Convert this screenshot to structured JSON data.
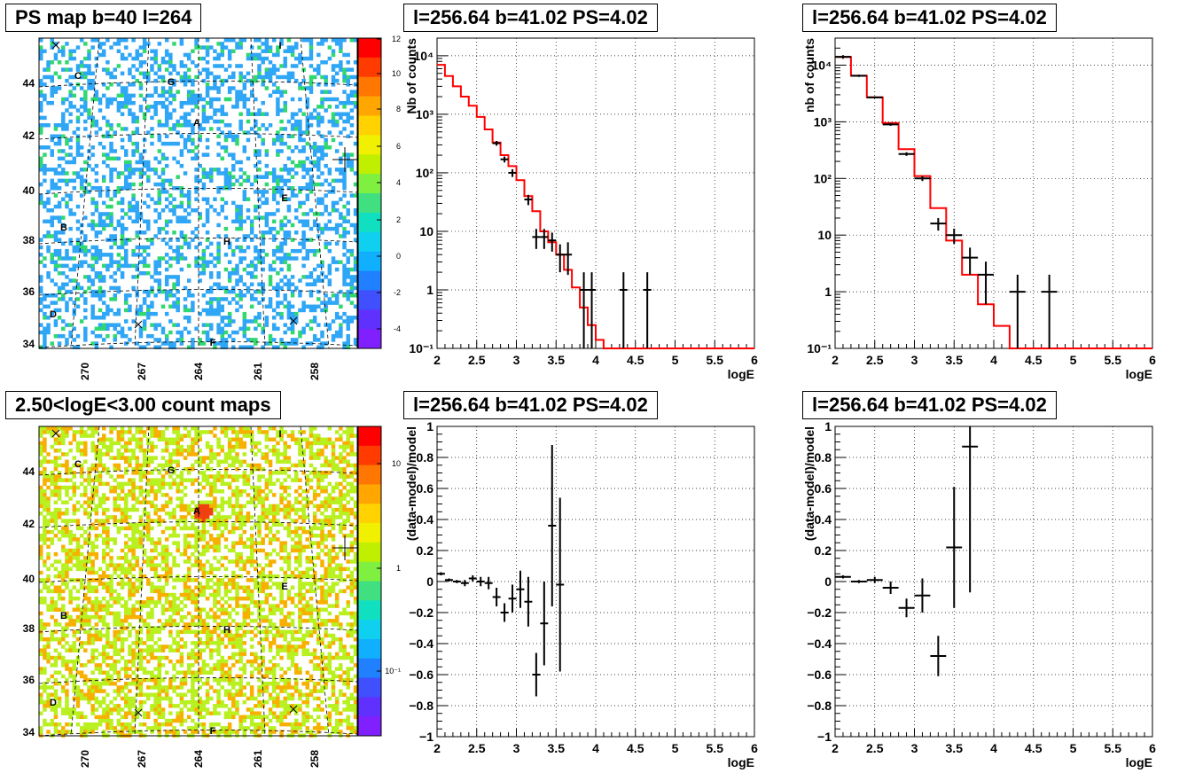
{
  "maps": [
    {
      "title": "PS map b=40 l=264",
      "type": "heatmap",
      "colorbar_ticks": [
        "12",
        "10",
        "8",
        "6",
        "4",
        "2",
        "0",
        "-2",
        "-4"
      ],
      "xticks": [
        "270",
        "267",
        "264",
        "261",
        "258"
      ],
      "yticks": [
        "44",
        "42",
        "40",
        "38",
        "36",
        "34"
      ],
      "sources": [
        "C",
        "G",
        "A",
        "E",
        "B",
        "H",
        "D",
        "F",
        "I"
      ],
      "colors": {
        "base": "#0fe6ef",
        "low": "#2fa6f6",
        "mid": "#30d870",
        "high": "#a6f000"
      }
    },
    {
      "title": "2.50<logE<3.00 count maps",
      "type": "heatmap",
      "colorbar_ticks": [
        "10",
        "1",
        "10⁻¹"
      ],
      "xticks": [
        "270",
        "267",
        "264",
        "261",
        "258"
      ],
      "yticks": [
        "44",
        "42",
        "40",
        "38",
        "36",
        "34"
      ],
      "sources": [
        "C",
        "G",
        "A",
        "E",
        "B",
        "H",
        "D",
        "F",
        "I"
      ],
      "colors": {
        "base": "#f0ec20",
        "low": "#b8f020",
        "mid": "#f8b000",
        "high": "#f04010"
      }
    }
  ],
  "chart_data": [
    {
      "type": "line",
      "title": "l=256.64 b=41.02 PS=4.02",
      "xlabel": "logE",
      "ylabel": "Nb of counts",
      "xlim": [
        2,
        6
      ],
      "ylim": [
        0.1,
        20000
      ],
      "ylog": true,
      "grid": true,
      "xticks": [
        "2",
        "2.5",
        "3",
        "3.5",
        "4",
        "4.5",
        "5",
        "5.5",
        "6"
      ],
      "yticks": [
        {
          "v": 0.1,
          "t": "10⁻¹"
        },
        {
          "v": 1,
          "t": "1"
        },
        {
          "v": 10,
          "t": "10"
        },
        {
          "v": 100,
          "t": "10²"
        },
        {
          "v": 1000,
          "t": "10³"
        },
        {
          "v": 10000,
          "t": "10⁴"
        }
      ],
      "model_color": "#ff0000",
      "model": {
        "edges": [
          2.0,
          2.1,
          2.2,
          2.3,
          2.4,
          2.5,
          2.6,
          2.7,
          2.8,
          2.9,
          3.0,
          3.1,
          3.2,
          3.3,
          3.4,
          3.5,
          3.6,
          3.7,
          3.8,
          3.9,
          4.0,
          4.1,
          6.0
        ],
        "values": [
          7000,
          4500,
          3000,
          2000,
          1400,
          900,
          550,
          330,
          200,
          130,
          75,
          40,
          22,
          10,
          6.5,
          4,
          2.2,
          1.1,
          0.5,
          0.25,
          0.14,
          0.1
        ]
      },
      "points": [
        {
          "x": 2.75,
          "xe": 0.05,
          "y": 320,
          "lo": 290,
          "hi": 350
        },
        {
          "x": 2.85,
          "xe": 0.05,
          "y": 170,
          "lo": 150,
          "hi": 190
        },
        {
          "x": 2.95,
          "xe": 0.05,
          "y": 100,
          "lo": 85,
          "hi": 115
        },
        {
          "x": 3.15,
          "xe": 0.05,
          "y": 35,
          "lo": 28,
          "hi": 42
        },
        {
          "x": 3.25,
          "xe": 0.05,
          "y": 8,
          "lo": 5,
          "hi": 11
        },
        {
          "x": 3.35,
          "xe": 0.05,
          "y": 8,
          "lo": 5,
          "hi": 11
        },
        {
          "x": 3.45,
          "xe": 0.05,
          "y": 7,
          "lo": 4.5,
          "hi": 9.5
        },
        {
          "x": 3.55,
          "xe": 0.05,
          "y": 4,
          "lo": 2,
          "hi": 6
        },
        {
          "x": 3.65,
          "xe": 0.05,
          "y": 4,
          "lo": 1.8,
          "hi": 6.5
        },
        {
          "x": 3.85,
          "xe": 0.05,
          "y": 1,
          "lo": 0.1,
          "hi": 2
        },
        {
          "x": 3.95,
          "xe": 0.05,
          "y": 1,
          "lo": 0.1,
          "hi": 2
        },
        {
          "x": 4.35,
          "xe": 0.05,
          "y": 1,
          "lo": 0.1,
          "hi": 2
        },
        {
          "x": 4.65,
          "xe": 0.05,
          "y": 1,
          "lo": 0.1,
          "hi": 2
        }
      ]
    },
    {
      "type": "line",
      "title": "l=256.64 b=41.02 PS=4.02",
      "xlabel": "logE",
      "ylabel": "nb of counts",
      "xlim": [
        2,
        6
      ],
      "ylim": [
        0.1,
        30000
      ],
      "ylog": true,
      "grid": true,
      "xticks": [
        "2",
        "2.5",
        "3",
        "3.5",
        "4",
        "4.5",
        "5",
        "5.5",
        "6"
      ],
      "yticks": [
        {
          "v": 0.1,
          "t": "10⁻¹"
        },
        {
          "v": 1,
          "t": "1"
        },
        {
          "v": 10,
          "t": "10"
        },
        {
          "v": 100,
          "t": "10²"
        },
        {
          "v": 1000,
          "t": "10³"
        },
        {
          "v": 10000,
          "t": "10⁴"
        }
      ],
      "model_color": "#ff0000",
      "model": {
        "edges": [
          2.0,
          2.2,
          2.4,
          2.6,
          2.8,
          3.0,
          3.2,
          3.4,
          3.6,
          3.8,
          4.0,
          4.2,
          6.0
        ],
        "values": [
          14000,
          6500,
          2700,
          950,
          330,
          110,
          30,
          8,
          2,
          0.6,
          0.25,
          0.1
        ]
      },
      "points": [
        {
          "x": 2.1,
          "xe": 0.1,
          "y": 14000,
          "lo": 13000,
          "hi": 15000
        },
        {
          "x": 2.3,
          "xe": 0.1,
          "y": 6500,
          "lo": 6200,
          "hi": 6800
        },
        {
          "x": 2.5,
          "xe": 0.1,
          "y": 2700,
          "lo": 2600,
          "hi": 2800
        },
        {
          "x": 2.7,
          "xe": 0.1,
          "y": 900,
          "lo": 850,
          "hi": 950
        },
        {
          "x": 2.9,
          "xe": 0.1,
          "y": 270,
          "lo": 250,
          "hi": 290
        },
        {
          "x": 3.1,
          "xe": 0.1,
          "y": 100,
          "lo": 90,
          "hi": 110
        },
        {
          "x": 3.3,
          "xe": 0.1,
          "y": 16,
          "lo": 12,
          "hi": 20
        },
        {
          "x": 3.5,
          "xe": 0.1,
          "y": 10,
          "lo": 7,
          "hi": 13
        },
        {
          "x": 3.7,
          "xe": 0.1,
          "y": 4,
          "lo": 2,
          "hi": 6
        },
        {
          "x": 3.9,
          "xe": 0.1,
          "y": 2,
          "lo": 0.6,
          "hi": 3.4
        },
        {
          "x": 4.3,
          "xe": 0.1,
          "y": 1,
          "lo": 0.1,
          "hi": 2
        },
        {
          "x": 4.7,
          "xe": 0.1,
          "y": 1,
          "lo": 0.1,
          "hi": 2
        }
      ]
    },
    {
      "type": "scatter",
      "title": "l=256.64 b=41.02 PS=4.02",
      "xlabel": "logE",
      "ylabel": "(data-model)/model",
      "xlim": [
        2,
        6
      ],
      "ylim": [
        -1,
        1
      ],
      "ylog": false,
      "grid": true,
      "xticks": [
        "2",
        "2.5",
        "3",
        "3.5",
        "4",
        "4.5",
        "5",
        "5.5",
        "6"
      ],
      "yticks": [
        {
          "v": -1,
          "t": "−1"
        },
        {
          "v": -0.8,
          "t": "−0.8"
        },
        {
          "v": -0.6,
          "t": "−0.6"
        },
        {
          "v": -0.4,
          "t": "−0.4"
        },
        {
          "v": -0.2,
          "t": "−0.2"
        },
        {
          "v": 0,
          "t": "0"
        },
        {
          "v": 0.2,
          "t": "0.2"
        },
        {
          "v": 0.4,
          "t": "0.4"
        },
        {
          "v": 0.6,
          "t": "0.6"
        },
        {
          "v": 0.8,
          "t": "0.8"
        },
        {
          "v": 1,
          "t": "1"
        }
      ],
      "points": [
        {
          "x": 2.05,
          "xe": 0.05,
          "y": 0.05,
          "lo": 0.04,
          "hi": 0.06
        },
        {
          "x": 2.15,
          "xe": 0.05,
          "y": 0.01,
          "lo": 0.0,
          "hi": 0.02
        },
        {
          "x": 2.25,
          "xe": 0.05,
          "y": 0.0,
          "lo": -0.01,
          "hi": 0.01
        },
        {
          "x": 2.35,
          "xe": 0.05,
          "y": -0.01,
          "lo": -0.03,
          "hi": 0.01
        },
        {
          "x": 2.45,
          "xe": 0.05,
          "y": 0.02,
          "lo": 0.0,
          "hi": 0.04
        },
        {
          "x": 2.55,
          "xe": 0.05,
          "y": 0.0,
          "lo": -0.03,
          "hi": 0.03
        },
        {
          "x": 2.65,
          "xe": 0.05,
          "y": -0.01,
          "lo": -0.05,
          "hi": 0.03
        },
        {
          "x": 2.75,
          "xe": 0.05,
          "y": -0.1,
          "lo": -0.16,
          "hi": -0.04
        },
        {
          "x": 2.85,
          "xe": 0.05,
          "y": -0.2,
          "lo": -0.26,
          "hi": -0.14
        },
        {
          "x": 2.95,
          "xe": 0.05,
          "y": -0.11,
          "lo": -0.2,
          "hi": -0.02
        },
        {
          "x": 3.05,
          "xe": 0.05,
          "y": -0.05,
          "lo": -0.17,
          "hi": 0.07
        },
        {
          "x": 3.15,
          "xe": 0.05,
          "y": -0.13,
          "lo": -0.29,
          "hi": 0.03
        },
        {
          "x": 3.25,
          "xe": 0.05,
          "y": -0.6,
          "lo": -0.74,
          "hi": -0.46
        },
        {
          "x": 3.35,
          "xe": 0.05,
          "y": -0.27,
          "lo": -0.54,
          "hi": 0.0
        },
        {
          "x": 3.45,
          "xe": 0.05,
          "y": 0.36,
          "lo": -0.16,
          "hi": 0.88
        },
        {
          "x": 3.55,
          "xe": 0.05,
          "y": -0.02,
          "lo": -0.58,
          "hi": 0.54
        }
      ]
    },
    {
      "type": "scatter",
      "title": "l=256.64 b=41.02 PS=4.02",
      "xlabel": "logE",
      "ylabel": "(data-model)/model",
      "xlim": [
        2,
        6
      ],
      "ylim": [
        -1,
        1
      ],
      "ylog": false,
      "grid": true,
      "xticks": [
        "2",
        "2.5",
        "3",
        "3.5",
        "4",
        "4.5",
        "5",
        "5.5",
        "6"
      ],
      "yticks": [
        {
          "v": -1,
          "t": "−1"
        },
        {
          "v": -0.8,
          "t": "−0.8"
        },
        {
          "v": -0.6,
          "t": "−0.6"
        },
        {
          "v": -0.4,
          "t": "−0.4"
        },
        {
          "v": -0.2,
          "t": "−0.2"
        },
        {
          "v": 0,
          "t": "0"
        },
        {
          "v": 0.2,
          "t": "0.2"
        },
        {
          "v": 0.4,
          "t": "0.4"
        },
        {
          "v": 0.6,
          "t": "0.6"
        },
        {
          "v": 0.8,
          "t": "0.8"
        },
        {
          "v": 1,
          "t": "1"
        }
      ],
      "points": [
        {
          "x": 2.1,
          "xe": 0.1,
          "y": 0.03,
          "lo": 0.02,
          "hi": 0.04
        },
        {
          "x": 2.3,
          "xe": 0.1,
          "y": 0.0,
          "lo": -0.01,
          "hi": 0.01
        },
        {
          "x": 2.5,
          "xe": 0.1,
          "y": 0.01,
          "lo": -0.01,
          "hi": 0.03
        },
        {
          "x": 2.7,
          "xe": 0.1,
          "y": -0.04,
          "lo": -0.08,
          "hi": 0.0
        },
        {
          "x": 2.9,
          "xe": 0.1,
          "y": -0.17,
          "lo": -0.23,
          "hi": -0.11
        },
        {
          "x": 3.1,
          "xe": 0.1,
          "y": -0.09,
          "lo": -0.2,
          "hi": 0.02
        },
        {
          "x": 3.3,
          "xe": 0.1,
          "y": -0.48,
          "lo": -0.61,
          "hi": -0.35
        },
        {
          "x": 3.5,
          "xe": 0.1,
          "y": 0.22,
          "lo": -0.17,
          "hi": 0.61
        },
        {
          "x": 3.7,
          "xe": 0.1,
          "y": 0.87,
          "lo": -0.07,
          "hi": 1.0
        }
      ]
    }
  ]
}
